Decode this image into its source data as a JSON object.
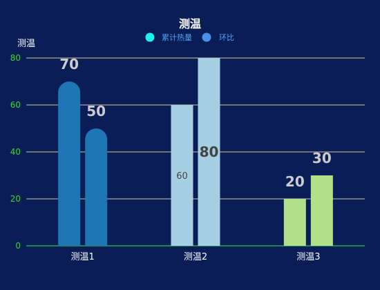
{
  "chart_data": {
    "type": "bar",
    "title": "测温",
    "ylabel": "测温",
    "xlabel": "",
    "categories": [
      "测温1",
      "测温2",
      "测温3"
    ],
    "ylim": [
      0,
      80
    ],
    "yticks": [
      0,
      20,
      40,
      60,
      80
    ],
    "grid": true,
    "legend": {
      "placement": "top-center",
      "entries": [
        {
          "label": "累计热量",
          "color": "#1ff2ee"
        },
        {
          "label": "环比",
          "color": "#4a8fe8"
        }
      ]
    },
    "bars": [
      {
        "category": "测温1",
        "value": 70,
        "label": "70",
        "color": "#1e76b5",
        "shape": "rounded"
      },
      {
        "category": "测温1",
        "value": 50,
        "label": "50",
        "color": "#1e76b5",
        "shape": "rounded"
      },
      {
        "category": "测温2",
        "value": 60,
        "label": "60",
        "color": "#a6cfe3",
        "shape": "square"
      },
      {
        "category": "测温2",
        "value": 80,
        "label": "80",
        "color": "#a6cfe3",
        "shape": "square"
      },
      {
        "category": "测温3",
        "value": 20,
        "label": "20",
        "color": "#b2df8a",
        "shape": "square"
      },
      {
        "category": "测温3",
        "value": 30,
        "label": "30",
        "color": "#b2df8a",
        "shape": "square"
      }
    ],
    "colors": {
      "background": "#0b1d57",
      "grid": "#cfc8a0",
      "axis": "#1ec84c",
      "ytick_text": "#22e022",
      "title_text": "#ffffff",
      "ylabel_text": "#ffffff",
      "xtick_text": "#ffffff",
      "data_label_text": "#cccccc",
      "data_label_inside_text": "#444444",
      "legend_text": "#4ba3f0"
    }
  }
}
